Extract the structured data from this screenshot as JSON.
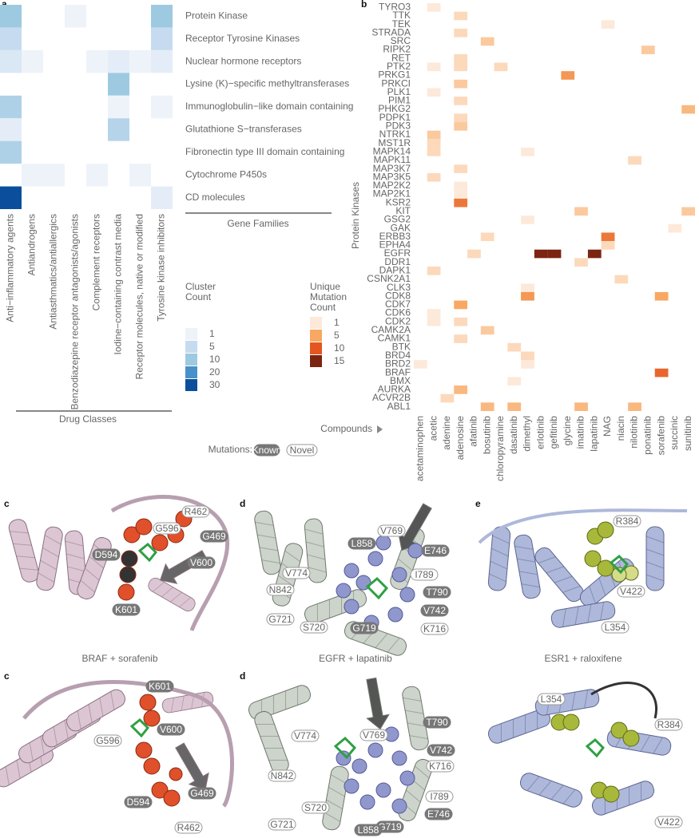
{
  "chart_data": [
    {
      "type": "heatmap",
      "panel": "a",
      "rows": [
        "Protein Kinase",
        "Receptor Tyrosine Kinases",
        "Nuclear hormone receptors",
        "Lysine (K)−specific methyltransferases",
        "Immunoglobulin−like domain containing",
        "Glutathione S−transferases",
        "Fibronectin type III domain containing",
        "Cytochrome P450s",
        "CD molecules"
      ],
      "columns": [
        "Anti−inflammatory agents",
        "Antiandrogens",
        "Antiasthmatics/antiallergics",
        "Benzodiazepine receptor antagonists/agonists",
        "Complement receptors",
        "Iodine−containing contrast media",
        "Receptor molecules, native or modified",
        "Tyrosine kinase inhibitors"
      ],
      "values": [
        [
          10,
          null,
          null,
          1,
          null,
          null,
          null,
          10
        ],
        [
          5,
          null,
          null,
          null,
          null,
          null,
          null,
          5
        ],
        [
          3,
          1,
          null,
          null,
          1,
          2,
          1,
          2
        ],
        [
          null,
          null,
          null,
          null,
          null,
          10,
          null,
          null
        ],
        [
          8,
          null,
          null,
          null,
          null,
          1,
          null,
          1
        ],
        [
          2,
          null,
          null,
          null,
          null,
          7,
          null,
          null
        ],
        [
          8,
          null,
          null,
          null,
          null,
          null,
          null,
          null
        ],
        [
          null,
          1,
          1,
          null,
          1,
          null,
          1,
          null
        ],
        [
          30,
          null,
          null,
          null,
          null,
          null,
          null,
          2
        ]
      ],
      "row_axis_title": "Gene Families",
      "column_axis_title": "Drug Classes",
      "legend_title": [
        "Cluster",
        "Count"
      ],
      "legend_levels": [
        1,
        5,
        10,
        20,
        30
      ],
      "legend_colors": [
        "#eef3fa",
        "#c6dbef",
        "#9ecae1",
        "#4a90c8",
        "#0b4f9c"
      ]
    },
    {
      "type": "heatmap",
      "panel": "b",
      "rows": [
        "TYRO3",
        "TTK",
        "TEK",
        "STRADA",
        "SRC",
        "RIPK2",
        "RET",
        "PTK2",
        "PRKG1",
        "PRKCI",
        "PLK1",
        "PIM1",
        "PHKG2",
        "PDPK1",
        "PDK3",
        "NTRK1",
        "MST1R",
        "MAPK14",
        "MAPK11",
        "MAP3K7",
        "MAP3K5",
        "MAP2K2",
        "MAP2K1",
        "KSR2",
        "KIT",
        "GSG2",
        "GAK",
        "ERBB3",
        "EPHA4",
        "EGFR",
        "DDR1",
        "DAPK1",
        "CSNK2A1",
        "CLK3",
        "CDK8",
        "CDK7",
        "CDK6",
        "CDK2",
        "CAMK2A",
        "CAMK1",
        "BTK",
        "BRD4",
        "BRD2",
        "BRAF",
        "BMX",
        "AURKA",
        "ACVR2B",
        "ABL1"
      ],
      "columns": [
        "acetaminophen",
        "acetic",
        "adenine",
        "adenosine",
        "afatinib",
        "bosutinib",
        "chloropyramine",
        "dasatinib",
        "dimethyl",
        "erlotinib",
        "gefitinib",
        "glycine",
        "imatinib",
        "lapatinib",
        "NAG",
        "niacin",
        "nilotinib",
        "ponatinib",
        "sorafenib",
        "succinic",
        "sunitinib"
      ],
      "cells": [
        [
          0,
          1,
          1
        ],
        [
          1,
          3,
          2
        ],
        [
          2,
          14,
          1
        ],
        [
          3,
          3,
          2
        ],
        [
          4,
          5,
          3
        ],
        [
          5,
          17,
          3
        ],
        [
          6,
          3,
          2
        ],
        [
          7,
          1,
          1
        ],
        [
          7,
          3,
          2
        ],
        [
          7,
          6,
          2
        ],
        [
          8,
          11,
          6
        ],
        [
          9,
          3,
          3
        ],
        [
          10,
          1,
          1
        ],
        [
          11,
          3,
          2
        ],
        [
          12,
          20,
          4
        ],
        [
          13,
          3,
          2
        ],
        [
          14,
          3,
          3
        ],
        [
          15,
          1,
          3
        ],
        [
          16,
          1,
          2
        ],
        [
          17,
          1,
          2
        ],
        [
          17,
          8,
          1
        ],
        [
          18,
          16,
          2
        ],
        [
          19,
          3,
          2
        ],
        [
          20,
          1,
          2
        ],
        [
          21,
          3,
          1
        ],
        [
          22,
          3,
          1
        ],
        [
          23,
          3,
          8
        ],
        [
          24,
          12,
          3
        ],
        [
          24,
          20,
          3
        ],
        [
          25,
          8,
          1
        ],
        [
          26,
          19,
          1
        ],
        [
          27,
          5,
          2
        ],
        [
          27,
          14,
          8
        ],
        [
          28,
          14,
          2
        ],
        [
          29,
          4,
          2
        ],
        [
          29,
          9,
          15
        ],
        [
          29,
          10,
          15
        ],
        [
          29,
          13,
          15
        ],
        [
          30,
          12,
          2
        ],
        [
          31,
          1,
          2
        ],
        [
          32,
          15,
          2
        ],
        [
          33,
          8,
          1
        ],
        [
          34,
          8,
          6
        ],
        [
          34,
          18,
          5
        ],
        [
          35,
          3,
          5
        ],
        [
          36,
          1,
          1
        ],
        [
          37,
          1,
          1
        ],
        [
          37,
          3,
          2
        ],
        [
          38,
          5,
          3
        ],
        [
          39,
          3,
          2
        ],
        [
          40,
          7,
          2
        ],
        [
          41,
          8,
          2
        ],
        [
          42,
          0,
          1
        ],
        [
          42,
          8,
          1
        ],
        [
          43,
          18,
          9
        ],
        [
          44,
          7,
          1
        ],
        [
          45,
          3,
          4
        ],
        [
          46,
          2,
          2
        ],
        [
          47,
          5,
          4
        ],
        [
          47,
          7,
          4
        ],
        [
          47,
          12,
          4
        ],
        [
          47,
          16,
          4
        ]
      ],
      "row_axis_title": "Protein Kinases",
      "column_axis_title": "Compounds",
      "legend_title": [
        "Unique",
        "Mutation",
        "Count"
      ],
      "legend_levels": [
        1,
        5,
        10,
        15
      ],
      "legend_colors": [
        "#fde9d9",
        "#f8a862",
        "#e4561f",
        "#7b2412"
      ]
    }
  ],
  "mutation_legend": {
    "title": "Mutations:",
    "known": "Known",
    "novel": "Novel"
  },
  "structures": [
    {
      "caption": "BRAF + sorafenib",
      "views": [
        {
          "label": "c",
          "residues": [
            {
              "label": "G596",
              "known": false
            },
            {
              "label": "R462",
              "known": false
            },
            {
              "label": "G469",
              "known": true
            },
            {
              "label": "D594",
              "known": true
            },
            {
              "label": "V600",
              "known": true
            },
            {
              "label": "K601",
              "known": true
            }
          ]
        },
        {
          "label": "c",
          "residues": [
            {
              "label": "K601",
              "known": true
            },
            {
              "label": "V600",
              "known": true
            },
            {
              "label": "G596",
              "known": false
            },
            {
              "label": "G469",
              "known": true
            },
            {
              "label": "D594",
              "known": true
            },
            {
              "label": "R462",
              "known": false
            }
          ]
        }
      ]
    },
    {
      "caption": "EGFR + lapatinib",
      "views": [
        {
          "label": "d",
          "residues": [
            {
              "label": "V769",
              "known": false
            },
            {
              "label": "L858",
              "known": true
            },
            {
              "label": "E746",
              "known": true
            },
            {
              "label": "V774",
              "known": false
            },
            {
              "label": "I789",
              "known": false
            },
            {
              "label": "N842",
              "known": false
            },
            {
              "label": "T790",
              "known": true
            },
            {
              "label": "G721",
              "known": false
            },
            {
              "label": "V742",
              "known": true
            },
            {
              "label": "S720",
              "known": false
            },
            {
              "label": "G719",
              "known": true
            },
            {
              "label": "K716",
              "known": false
            }
          ]
        },
        {
          "label": "d",
          "residues": [
            {
              "label": "V774",
              "known": false
            },
            {
              "label": "V769",
              "known": false
            },
            {
              "label": "T790",
              "known": true
            },
            {
              "label": "V742",
              "known": true
            },
            {
              "label": "K716",
              "known": false
            },
            {
              "label": "N842",
              "known": false
            },
            {
              "label": "I789",
              "known": false
            },
            {
              "label": "S720",
              "known": false
            },
            {
              "label": "G721",
              "known": false
            },
            {
              "label": "G719",
              "known": true
            },
            {
              "label": "E746",
              "known": true
            },
            {
              "label": "L858",
              "known": true
            }
          ]
        }
      ]
    },
    {
      "caption": "ESR1 + raloxifene",
      "views": [
        {
          "label": "e",
          "residues": [
            {
              "label": "R384",
              "known": false
            },
            {
              "label": "V422",
              "known": false
            },
            {
              "label": "L354",
              "known": false
            }
          ]
        },
        {
          "residues": [
            {
              "label": "L354",
              "known": false
            },
            {
              "label": "R384",
              "known": false
            },
            {
              "label": "V422",
              "known": false
            }
          ]
        }
      ]
    }
  ]
}
